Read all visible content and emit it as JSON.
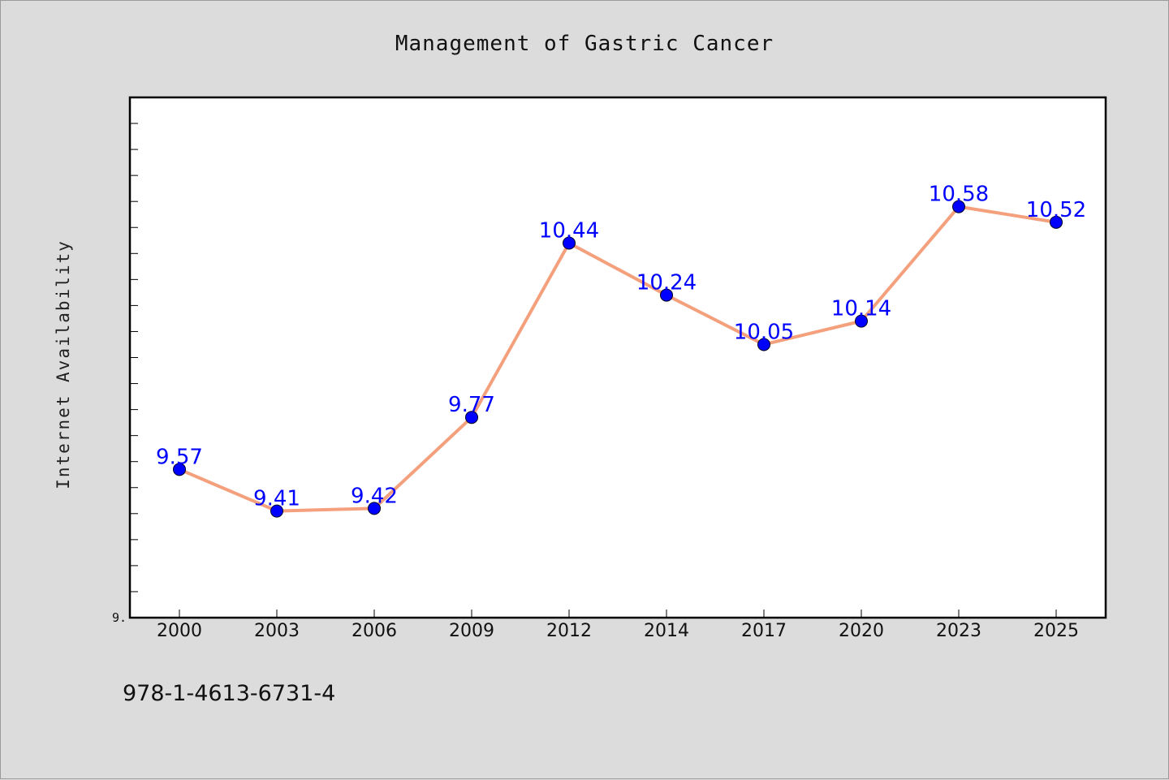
{
  "chart_data": {
    "type": "line",
    "title": "Management of Gastric Cancer",
    "xlabel": "",
    "ylabel": "Internet Availability",
    "categories": [
      "2000",
      "2003",
      "2006",
      "2009",
      "2012",
      "2014",
      "2017",
      "2020",
      "2023",
      "2025"
    ],
    "series": [
      {
        "values": [
          9.57,
          9.41,
          9.42,
          9.77,
          10.44,
          10.24,
          10.05,
          10.14,
          10.58,
          10.52
        ],
        "labels": [
          "9.57",
          "9.41",
          "9.42",
          "9.77",
          "10.44",
          "10.24",
          "10.05",
          "10.14",
          "10.58",
          "10.52"
        ],
        "line_color": "#f4a07c",
        "marker_color": "#0000ff"
      }
    ],
    "ylim": [
      9.0,
      11.0
    ],
    "y_tick_labels": [
      {
        "value": 9.0,
        "label": "9."
      }
    ],
    "grid": false,
    "legend": "none"
  },
  "footer": {
    "isbn": "978-1-4613-6731-4"
  },
  "colors": {
    "background": "#dcdcdc",
    "plot_background": "#ffffff",
    "axis": "#000000",
    "data_label": "#0000ff"
  }
}
